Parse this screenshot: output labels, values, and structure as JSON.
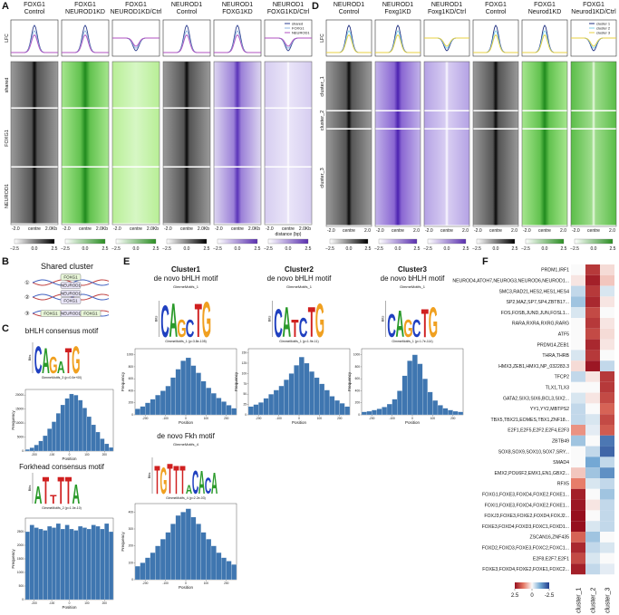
{
  "figure": {
    "A": {
      "label": "A",
      "lfc": "LFC",
      "columns": [
        [
          "FOXG1",
          "Control"
        ],
        [
          "FOXG1",
          "NEUROD1KD"
        ],
        [
          "FOXG1",
          "NEUROD1KD/Ctrl"
        ],
        [
          "NEUROD1",
          "Control"
        ],
        [
          "NEUROD1",
          "FOXG1KD"
        ],
        [
          "NEUROD1",
          "FOXG1KD/Ctrl"
        ]
      ],
      "rows": [
        "shared",
        "FOXG1",
        "NEUROD1"
      ],
      "axis": [
        "-2.0",
        "centre",
        "2.0Kb"
      ],
      "legend": [
        {
          "name": "shared",
          "color": "#2e3f8f"
        },
        {
          "name": "FOXG1",
          "color": "#8fb6e0"
        },
        {
          "name": "NEUROD1",
          "color": "#b050c0"
        }
      ],
      "distance": "distance (bp)",
      "colorbar": [
        "−2.5",
        "0.0",
        "2.5"
      ]
    },
    "D": {
      "label": "D",
      "lfc": "LFC",
      "columns": [
        [
          "NEUROD1",
          "Control"
        ],
        [
          "NEUROD1",
          "Foxg1KD"
        ],
        [
          "NEUROD1",
          "Foxg1KD/Ctrl"
        ],
        [
          "FOXG1",
          "Control"
        ],
        [
          "FOXG1",
          "Neurod1KD"
        ],
        [
          "FOXG1",
          "Neurod1KD/Ctrl"
        ]
      ],
      "rows": [
        "cluster_1",
        "cluster_2",
        "cluster_3"
      ],
      "axis": [
        "-2.0",
        "centre",
        "2.0"
      ],
      "legend": [
        {
          "name": "cluster 1",
          "color": "#1f2f80"
        },
        {
          "name": "cluster 2",
          "color": "#7fd0e8"
        },
        {
          "name": "cluster 3",
          "color": "#e8d040"
        }
      ],
      "colorbar": [
        "−2.5",
        "0.0",
        "2.5"
      ]
    },
    "B": {
      "label": "B",
      "title": "Shared cluster",
      "steps": [
        {
          "num": "①",
          "boxes": [
            "FOXG1",
            "NEUROD1"
          ]
        },
        {
          "num": "②",
          "boxes": [
            "NEUROD1",
            "FOXG1"
          ]
        },
        {
          "num": "③",
          "boxes": [
            "FOXG1",
            "NEUROD1",
            "FOXG1"
          ]
        }
      ]
    },
    "C": {
      "label": "C",
      "motifs": [
        {
          "title": "bHLH consensus motif",
          "bits": "Bits",
          "logo": [
            {
              "l": "C",
              "b": 1.8
            },
            {
              "l": "A",
              "b": 1.7
            },
            {
              "l": "G",
              "b": 1.1
            },
            {
              "l": "A",
              "b": 0.8
            },
            {
              "l": "T",
              "b": 1.7
            },
            {
              "l": "G",
              "b": 1.8
            }
          ],
          "caption": "GimmeMotifs_3 (p=0.0e+00)",
          "hist": {
            "bins": [
              -250,
              -225,
              -200,
              -175,
              -150,
              -125,
              -100,
              -75,
              -50,
              -25,
              0,
              25,
              50,
              75,
              100,
              125,
              150,
              175,
              200,
              225,
              250
            ],
            "counts": [
              600,
              1200,
              2200,
              3600,
              5500,
              8000,
              10500,
              13500,
              16500,
              18800,
              20400,
              20000,
              18200,
              15400,
              12300,
              9400,
              6800,
              4400,
              2600,
              1300
            ],
            "xlim": [
              -250,
              250
            ],
            "xticks": [
              -200,
              -100,
              0,
              100,
              200
            ],
            "ylim": [
              0,
              22000
            ],
            "yticks": [
              0,
              5000,
              10000,
              15000,
              20000
            ],
            "xlabel": "Position",
            "ylabel": "Frequency"
          }
        },
        {
          "title": "Forkhead consensus motif",
          "bits": "Bits",
          "logo": [
            {
              "l": "A",
              "b": 1.2
            },
            {
              "l": "T",
              "b": 1.8
            },
            {
              "l": "T",
              "b": 0.6
            },
            {
              "l": "T",
              "b": 1.8
            },
            {
              "l": "T",
              "b": 1.8
            },
            {
              "l": "A",
              "b": 1.3
            }
          ],
          "caption": "GimmeMotifs_2 (p=1.0e-10)",
          "hist": {
            "bins": [
              -250,
              -225,
              -200,
              -175,
              -150,
              -125,
              -100,
              -75,
              -50,
              -25,
              0,
              25,
              50,
              75,
              100,
              125,
              150,
              175,
              200,
              225,
              250
            ],
            "counts": [
              2500,
              2750,
              2650,
              2600,
              2550,
              2700,
              2650,
              2800,
              2600,
              2750,
              2600,
              2550,
              2700,
              2650,
              2600,
              2750,
              2700,
              2600,
              2800,
              2500
            ],
            "xlim": [
              -250,
              250
            ],
            "xticks": [
              -200,
              -100,
              0,
              100,
              200
            ],
            "ylim": [
              0,
              3000
            ],
            "yticks": [
              0,
              500,
              1000,
              1500,
              2000,
              2500
            ],
            "xlabel": "Position",
            "ylabel": "Frequency"
          }
        }
      ]
    },
    "E": {
      "label": "E",
      "motifs": [
        {
          "cluster": "Cluster1",
          "title": "de novo bHLH motif",
          "name": "GimmeMotifs_1",
          "bits": "Bits",
          "logo": [
            {
              "l": "C",
              "b": 1.8
            },
            {
              "l": "A",
              "b": 1.9
            },
            {
              "l": "G",
              "b": 1.0
            },
            {
              "l": "C",
              "b": 1.0
            },
            {
              "l": "T",
              "b": 1.9
            },
            {
              "l": "G",
              "b": 2.0
            }
          ],
          "caption": "GimmeMotifs_1 (p=3.8e-105)",
          "hist": {
            "bins": [
              -250,
              -225,
              -200,
              -175,
              -150,
              -125,
              -100,
              -75,
              -50,
              -25,
              0,
              25,
              50,
              75,
              100,
              125,
              150,
              175,
              200,
              225,
              250
            ],
            "counts": [
              100,
              140,
              200,
              260,
              330,
              400,
              480,
              620,
              760,
              900,
              950,
              820,
              700,
              560,
              450,
              360,
              280,
              220,
              160,
              110
            ],
            "xlim": [
              -250,
              250
            ],
            "xticks": [
              -200,
              -100,
              0,
              100,
              200
            ],
            "ylim": [
              0,
              1100
            ],
            "yticks": [
              0,
              200,
              400,
              600,
              800,
              1000
            ],
            "xlabel": "Position",
            "ylabel": "Frequency"
          }
        },
        {
          "cluster": "Cluster2",
          "title": "de novo bHLH motif",
          "name": "GimmeMotifs_1",
          "bits": "Bits",
          "logo": [
            {
              "l": "C",
              "b": 1.6
            },
            {
              "l": "A",
              "b": 1.7
            },
            {
              "l": "T",
              "b": 1.0
            },
            {
              "l": "C",
              "b": 1.1
            },
            {
              "l": "T",
              "b": 1.7
            },
            {
              "l": "G",
              "b": 1.9
            }
          ],
          "caption": "GimmeMotifs_1 (p=1.9e-11)",
          "hist": {
            "bins": [
              -250,
              -225,
              -200,
              -175,
              -150,
              -125,
              -100,
              -75,
              -50,
              -25,
              0,
              25,
              50,
              75,
              100,
              125,
              150,
              175,
              200,
              225,
              250
            ],
            "counts": [
              20,
              25,
              30,
              40,
              50,
              60,
              70,
              85,
              100,
              120,
              140,
              125,
              105,
              90,
              75,
              60,
              45,
              35,
              28,
              20
            ],
            "xlim": [
              -250,
              250
            ],
            "xticks": [
              -200,
              -100,
              0,
              100,
              200
            ],
            "ylim": [
              0,
              160
            ],
            "yticks": [
              0,
              25,
              50,
              75,
              100,
              125,
              150
            ],
            "xlabel": "Position",
            "ylabel": "Frequency"
          }
        },
        {
          "cluster": "Cluster3",
          "title": "de novo bHLH motif",
          "name": "GimmeMotifs_1",
          "bits": "Bits",
          "logo": [
            {
              "l": "C",
              "b": 1.3
            },
            {
              "l": "A",
              "b": 1.5
            },
            {
              "l": "G",
              "b": 1.0
            },
            {
              "l": "C",
              "b": 1.0
            },
            {
              "l": "T",
              "b": 1.6
            },
            {
              "l": "G",
              "b": 1.7
            }
          ],
          "caption": "GimmeMotifs_1 (p=1.7e-114)",
          "hist": {
            "bins": [
              -250,
              -225,
              -200,
              -175,
              -150,
              -125,
              -100,
              -75,
              -50,
              -25,
              0,
              25,
              50,
              75,
              100,
              125,
              150,
              175,
              200,
              225,
              250
            ],
            "counts": [
              50,
              60,
              80,
              100,
              130,
              180,
              260,
              400,
              650,
              900,
              1000,
              850,
              600,
              380,
              240,
              160,
              110,
              80,
              60,
              50
            ],
            "xlim": [
              -250,
              250
            ],
            "xticks": [
              -200,
              -100,
              0,
              100,
              200
            ],
            "ylim": [
              0,
              1100
            ],
            "yticks": [
              0,
              200,
              400,
              600,
              800,
              1000
            ],
            "xlabel": "Position",
            "ylabel": "Frequency"
          }
        },
        {
          "title": "de novo Fkh motif",
          "name": "GimmeMotifs_4",
          "bits": "Bits",
          "logo": [
            {
              "l": "T",
              "b": 1.6
            },
            {
              "l": "G",
              "b": 1.5
            },
            {
              "l": "T",
              "b": 1.7
            },
            {
              "l": "T",
              "b": 1.6
            },
            {
              "l": "T",
              "b": 1.6
            },
            {
              "l": "A",
              "b": 0.5
            },
            {
              "l": "C",
              "b": 1.3
            },
            {
              "l": "A",
              "b": 1.3
            },
            {
              "l": "C",
              "b": 0.9
            },
            {
              "l": "A",
              "b": 1.2
            }
          ],
          "caption": "GimmeMotifs_4 (p=2.2e-03)",
          "hist": {
            "bins": [
              -250,
              -225,
              -200,
              -175,
              -150,
              -125,
              -100,
              -75,
              -50,
              -25,
              0,
              25,
              50,
              75,
              100,
              125,
              150,
              175,
              200,
              225,
              250
            ],
            "counts": [
              80,
              100,
              130,
              160,
              200,
              240,
              280,
              330,
              380,
              400,
              420,
              370,
              330,
              280,
              240,
              200,
              160,
              130,
              110,
              90
            ],
            "xlim": [
              -250,
              250
            ],
            "xticks": [
              -200,
              -100,
              0,
              100,
              200
            ],
            "ylim": [
              0,
              450
            ],
            "yticks": [
              0,
              100,
              200,
              300,
              400
            ],
            "xlabel": "Position",
            "ylabel": "Frequency"
          }
        }
      ]
    },
    "F": {
      "label": "F",
      "columns": [
        "cluster_1",
        "cluster_2",
        "cluster_3"
      ],
      "clim": [
        2.5,
        -2.5
      ],
      "cticks": [
        2.5,
        0,
        -2.5
      ],
      "rows": [
        {
          "label": "PRDM1,IRF1",
          "values": [
            0,
            2,
            0.3
          ]
        },
        {
          "label": "NEUROD4,ATOH7,NEUROG3,NEUROD6,NEUROD1...",
          "values": [
            0.2,
            2.3,
            0.5
          ]
        },
        {
          "label": "SMC3,RAD21,HES2,HES1,HES4",
          "values": [
            -0.5,
            2,
            -0.3
          ]
        },
        {
          "label": "SP2,MAZ,SP7,SP4,ZBTB17...",
          "values": [
            -0.8,
            2.2,
            0.2
          ]
        },
        {
          "label": "FOS,FOSB,JUND,JUN,FOSL1...",
          "values": [
            -0.3,
            1.8,
            0
          ]
        },
        {
          "label": "RARA,RXRA,RXRG,RARG",
          "values": [
            0,
            2,
            0.2
          ]
        },
        {
          "label": "ATF5",
          "values": [
            0,
            1.8,
            0.3
          ]
        },
        {
          "label": "PRDM14,ZEB1",
          "values": [
            0,
            2.2,
            0.2
          ]
        },
        {
          "label": "THRA,THRB",
          "values": [
            -0.3,
            2,
            0
          ]
        },
        {
          "label": "HMX3,ZEB1,HMX1,NP_032283.3",
          "values": [
            0.3,
            2.4,
            -0.5
          ]
        },
        {
          "label": "TFCP2",
          "values": [
            -0.5,
            0.2,
            2
          ]
        },
        {
          "label": "TLX1,TLX3",
          "values": [
            0,
            0,
            2
          ]
        },
        {
          "label": "GATA2,SIX3,SIX6,BCL3,SIX2...",
          "values": [
            -0.3,
            0.2,
            1.8
          ]
        },
        {
          "label": "YY1,YY2,MBTPS2",
          "values": [
            -0.5,
            0,
            1.5
          ]
        },
        {
          "label": "TBX5,TBX21,EOMES,TBX1,ZNF18...",
          "values": [
            -0.5,
            -0.3,
            1.8
          ]
        },
        {
          "label": "E2F1,E2F5,E2F2,E2F4,E2F3",
          "values": [
            1,
            -0.2,
            1.6
          ]
        },
        {
          "label": "ZBTB49",
          "values": [
            -0.8,
            0,
            -1.8
          ]
        },
        {
          "label": "SOX8,SOX9,SOX10,SOX7,SRY...",
          "values": [
            0,
            -0.5,
            -2
          ]
        },
        {
          "label": "SMAD4",
          "values": [
            0,
            -1.2,
            -0.5
          ]
        },
        {
          "label": "EMX2,POU6F2,EMX1,EN1,GBX2...",
          "values": [
            0.5,
            -0.8,
            -1.5
          ]
        },
        {
          "label": "RFX5",
          "values": [
            1.2,
            -0.3,
            -0.5
          ]
        },
        {
          "label": "FOXG1,FOXE3,FOXD4,FOXE2,FOXE1...",
          "values": [
            2.3,
            0,
            -0.8
          ]
        },
        {
          "label": "FOXI1,FOXE3,FOXD4,FOXE2,FOXE1...",
          "values": [
            2.4,
            0.2,
            -0.5
          ]
        },
        {
          "label": "FOXJ3,FOXE3,FOXE2,FOXD4,FOXJ2...",
          "values": [
            2.5,
            0,
            -0.5
          ]
        },
        {
          "label": "FOXE3,FOXD4,FOXD3,FOXC1,FOXD1...",
          "values": [
            2.5,
            -0.3,
            -0.5
          ]
        },
        {
          "label": "ZSCAN16,ZNF435",
          "values": [
            1.5,
            -0.8,
            0
          ]
        },
        {
          "label": "FOXD2,FOXD3,FOXE3,FOXC2,FOXC1...",
          "values": [
            2.2,
            -0.5,
            -0.3
          ]
        },
        {
          "label": "E2F8,E2F7,E2F1",
          "values": [
            1.8,
            -0.3,
            0
          ]
        },
        {
          "label": "FOXE3,FOXD4,FOXE2,FOXE1,FOXC2...",
          "values": [
            2.3,
            -0.5,
            -0.2
          ]
        }
      ]
    }
  }
}
